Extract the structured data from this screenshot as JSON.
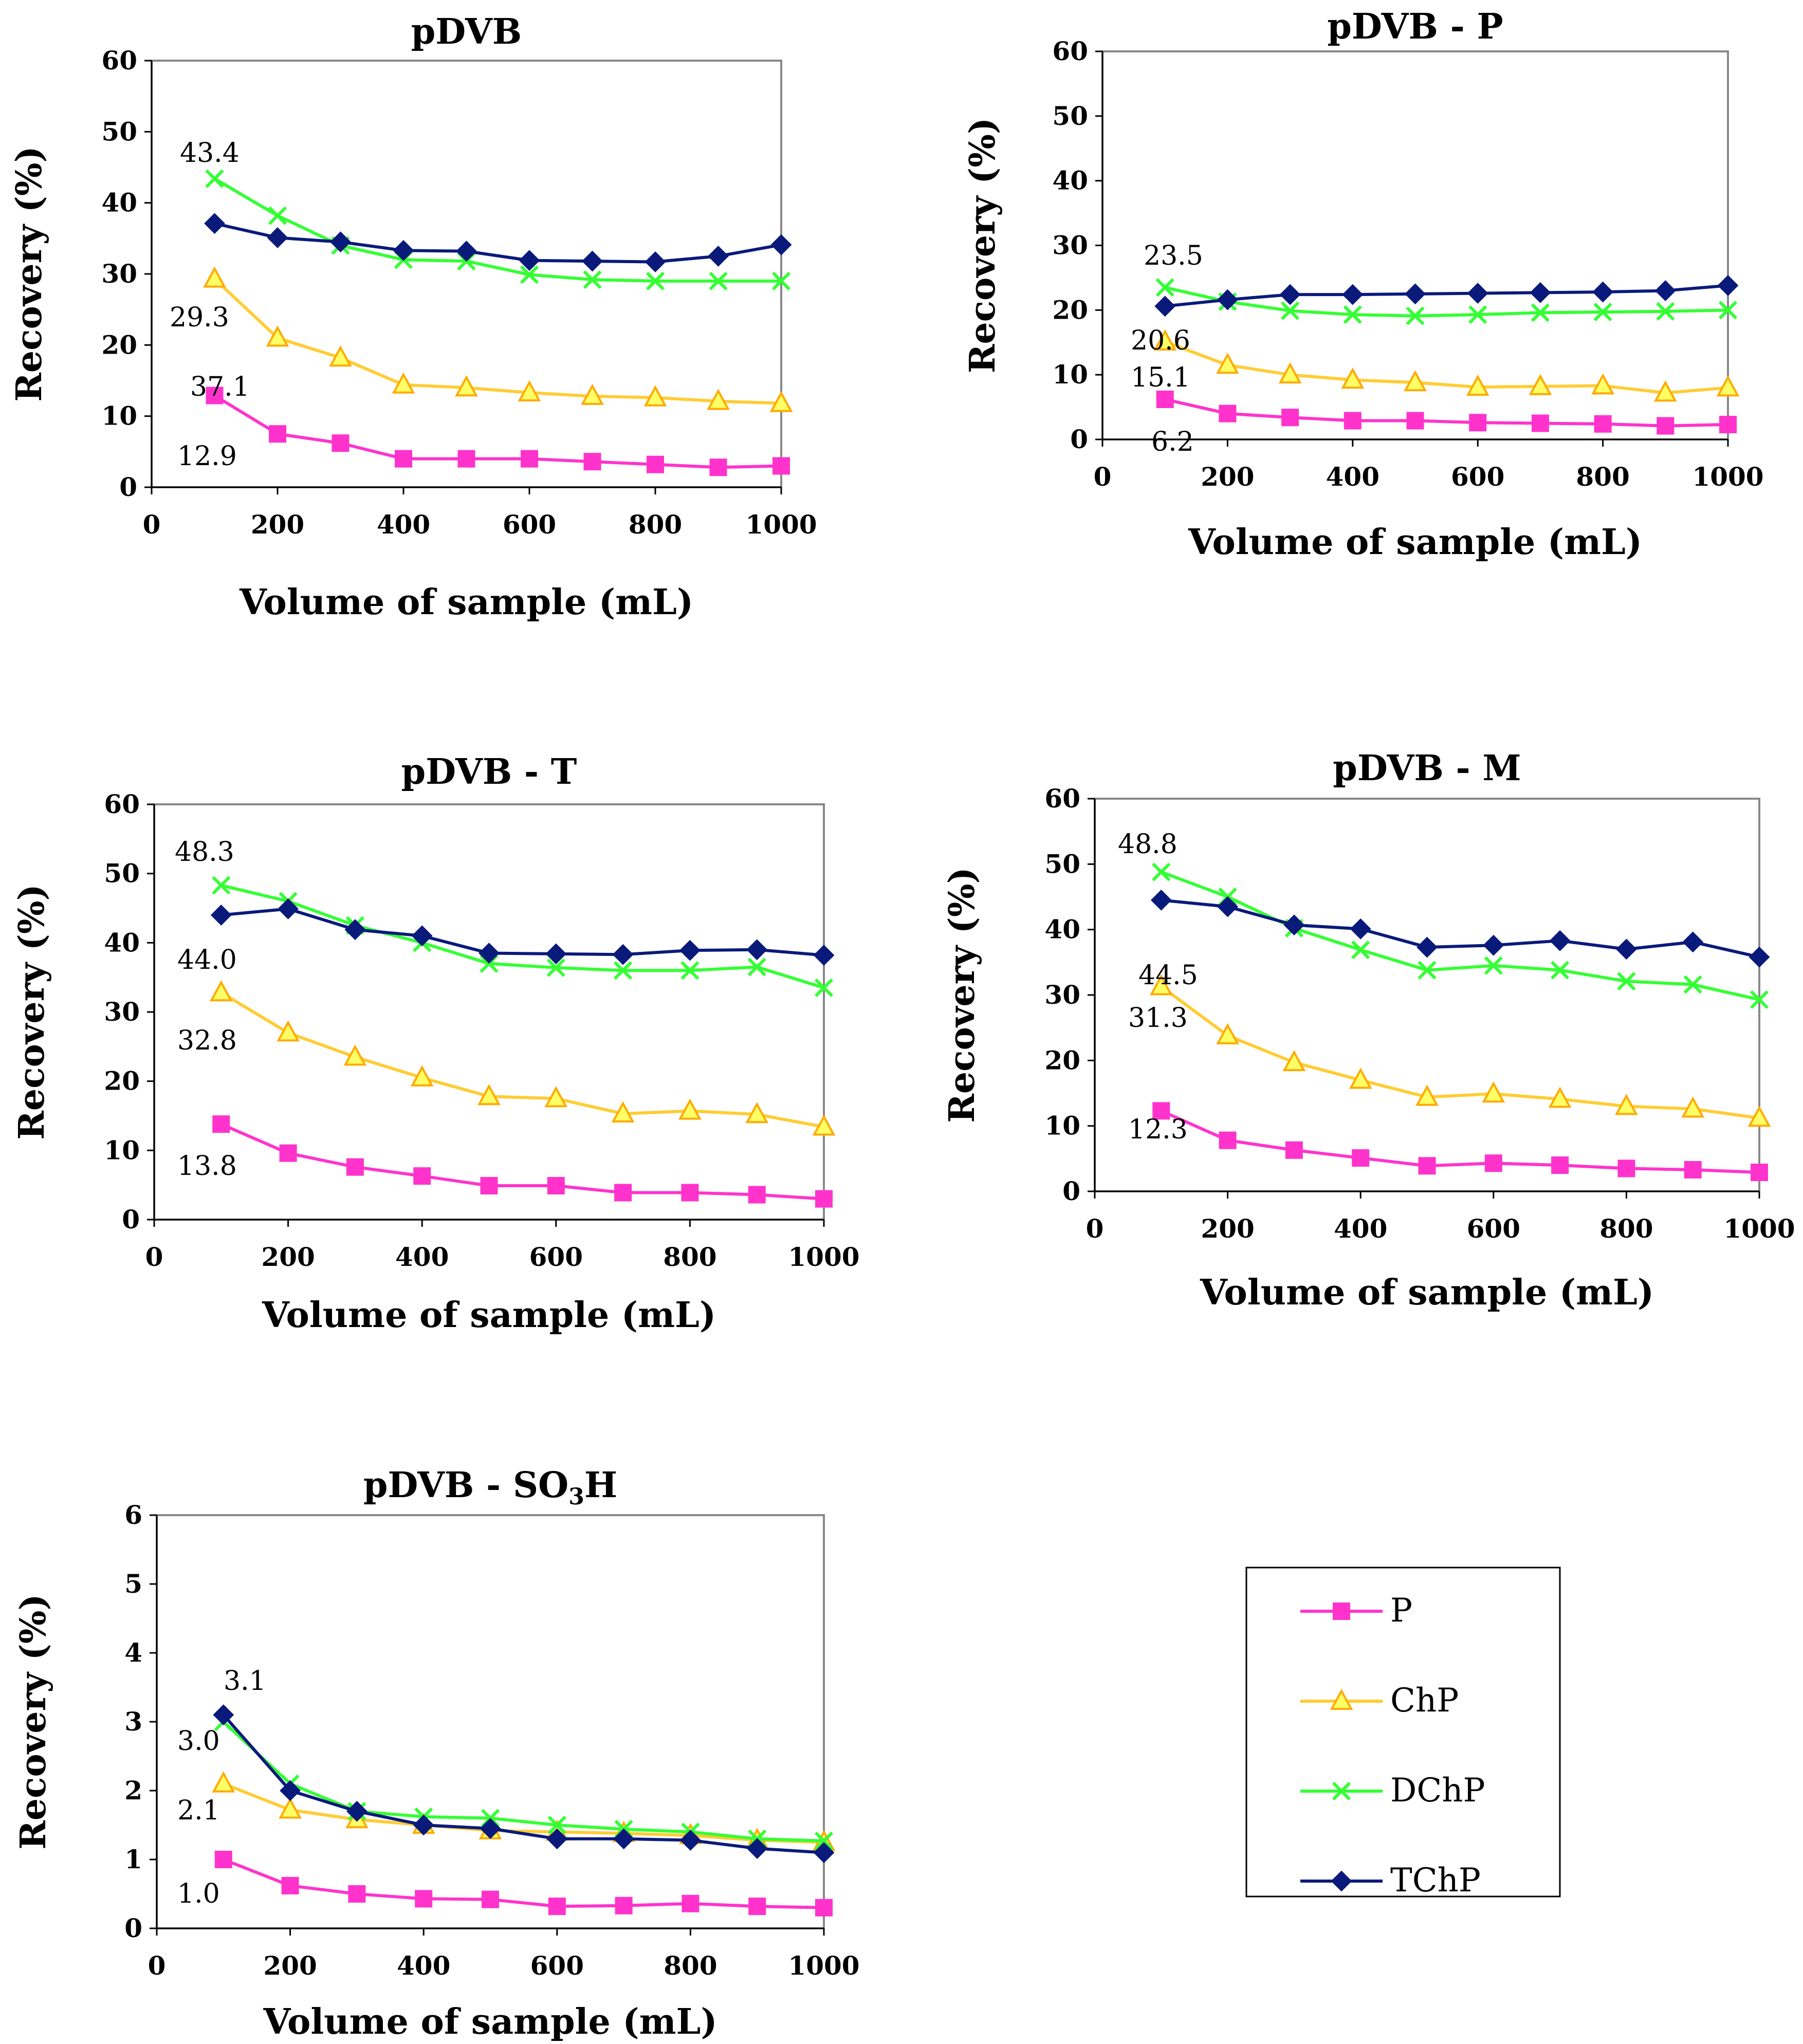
{
  "colors": {
    "P": "#ff33cc",
    "ChP": "#ffcc33",
    "DChP": "#33ff33",
    "TChP": "#0a1a7a",
    "triangle_fill": "#ffff66",
    "triangle_stroke": "#ffaa00",
    "plot_border": "#888888",
    "axis": "#000000"
  },
  "legend": {
    "entries": [
      {
        "name": "P",
        "marker": "square-icon"
      },
      {
        "name": "ChP",
        "marker": "triangle-icon"
      },
      {
        "name": "DChP",
        "marker": "cross-icon"
      },
      {
        "name": "TChP",
        "marker": "diamond-icon"
      }
    ]
  },
  "chart_data": [
    {
      "type": "line",
      "title": "pDVB",
      "xlabel": "Volume of sample (mL)",
      "ylabel": "Recovery (%)",
      "xlim": [
        0,
        1000
      ],
      "ylim": [
        0,
        60
      ],
      "xticks": [
        0,
        200,
        400,
        600,
        800,
        1000
      ],
      "yticks": [
        0,
        10,
        20,
        30,
        40,
        50,
        60
      ],
      "x": [
        100,
        200,
        300,
        400,
        500,
        600,
        700,
        800,
        900,
        1000
      ],
      "series": [
        {
          "name": "P",
          "values": [
            12.9,
            7.5,
            6.2,
            4.0,
            4.0,
            4.0,
            3.6,
            3.2,
            2.8,
            3.0
          ]
        },
        {
          "name": "ChP",
          "values": [
            29.3,
            21.0,
            18.2,
            14.4,
            14.0,
            13.3,
            12.8,
            12.6,
            12.1,
            11.8
          ]
        },
        {
          "name": "DChP",
          "values": [
            43.4,
            38.2,
            34.0,
            32.0,
            31.8,
            29.9,
            29.2,
            29.0,
            29.0,
            29.0
          ]
        },
        {
          "name": "TChP",
          "values": [
            37.1,
            35.1,
            34.5,
            33.3,
            33.2,
            31.9,
            31.8,
            31.7,
            32.5,
            34.1
          ]
        }
      ],
      "annotations": [
        {
          "text": "43.4",
          "series": "DChP",
          "x": 100,
          "y": 43.4
        },
        {
          "text": "37.1",
          "series": "TChP",
          "x": 100,
          "y": 37.1
        },
        {
          "text": "29.3",
          "series": "ChP",
          "x": 100,
          "y": 29.3
        },
        {
          "text": "12.9",
          "series": "P",
          "x": 100,
          "y": 12.9
        }
      ]
    },
    {
      "type": "line",
      "title": "pDVB - P",
      "xlabel": "Volume of sample (mL)",
      "ylabel": "Recovery (%)",
      "xlim": [
        0,
        1000
      ],
      "ylim": [
        0,
        60
      ],
      "xticks": [
        0,
        200,
        400,
        600,
        800,
        1000
      ],
      "yticks": [
        0,
        10,
        20,
        30,
        40,
        50,
        60
      ],
      "x": [
        100,
        200,
        300,
        400,
        500,
        600,
        700,
        800,
        900,
        1000
      ],
      "series": [
        {
          "name": "P",
          "values": [
            6.2,
            4.0,
            3.4,
            2.9,
            2.9,
            2.6,
            2.5,
            2.4,
            2.1,
            2.3
          ]
        },
        {
          "name": "ChP",
          "values": [
            15.1,
            11.5,
            10.0,
            9.2,
            8.8,
            8.1,
            8.2,
            8.3,
            7.2,
            8.0
          ]
        },
        {
          "name": "DChP",
          "values": [
            23.5,
            21.3,
            19.9,
            19.3,
            19.1,
            19.3,
            19.6,
            19.7,
            19.8,
            20.0
          ]
        },
        {
          "name": "TChP",
          "values": [
            20.6,
            21.6,
            22.4,
            22.4,
            22.5,
            22.6,
            22.7,
            22.8,
            23.0,
            23.8
          ]
        }
      ],
      "annotations": [
        {
          "text": "23.5",
          "series": "DChP",
          "x": 100,
          "y": 23.5
        },
        {
          "text": "20.6",
          "series": "TChP",
          "x": 100,
          "y": 20.6
        },
        {
          "text": "15.1",
          "series": "ChP",
          "x": 100,
          "y": 15.1
        },
        {
          "text": "6.2",
          "series": "P",
          "x": 100,
          "y": 6.2
        }
      ]
    },
    {
      "type": "line",
      "title": "pDVB - T",
      "xlabel": "Volume of sample (mL)",
      "ylabel": "Recovery (%)",
      "xlim": [
        0,
        1000
      ],
      "ylim": [
        0,
        60
      ],
      "xticks": [
        0,
        200,
        400,
        600,
        800,
        1000
      ],
      "yticks": [
        0,
        10,
        20,
        30,
        40,
        50,
        60
      ],
      "x": [
        100,
        200,
        300,
        400,
        500,
        600,
        700,
        800,
        900,
        1000
      ],
      "series": [
        {
          "name": "P",
          "values": [
            13.8,
            9.6,
            7.6,
            6.3,
            4.9,
            4.9,
            3.9,
            3.9,
            3.6,
            3.0
          ]
        },
        {
          "name": "ChP",
          "values": [
            32.8,
            27.0,
            23.5,
            20.5,
            17.8,
            17.5,
            15.3,
            15.7,
            15.2,
            13.4
          ]
        },
        {
          "name": "DChP",
          "values": [
            48.3,
            46.0,
            42.5,
            40.0,
            37.0,
            36.4,
            36.0,
            36.0,
            36.5,
            33.5
          ]
        },
        {
          "name": "TChP",
          "values": [
            44.0,
            44.9,
            41.9,
            41.0,
            38.5,
            38.4,
            38.3,
            38.9,
            39.0,
            38.2
          ]
        }
      ],
      "annotations": [
        {
          "text": "48.3",
          "series": "DChP",
          "x": 100,
          "y": 48.3
        },
        {
          "text": "44.0",
          "series": "TChP",
          "x": 100,
          "y": 44.0
        },
        {
          "text": "32.8",
          "series": "ChP",
          "x": 100,
          "y": 32.8
        },
        {
          "text": "13.8",
          "series": "P",
          "x": 100,
          "y": 13.8
        }
      ]
    },
    {
      "type": "line",
      "title": "pDVB - M",
      "xlabel": "Volume of sample (mL)",
      "ylabel": "Recovery (%)",
      "xlim": [
        0,
        1000
      ],
      "ylim": [
        0,
        60
      ],
      "xticks": [
        0,
        200,
        400,
        600,
        800,
        1000
      ],
      "yticks": [
        0,
        10,
        20,
        30,
        40,
        50,
        60
      ],
      "x": [
        100,
        200,
        300,
        400,
        500,
        600,
        700,
        800,
        900,
        1000
      ],
      "series": [
        {
          "name": "P",
          "values": [
            12.3,
            7.8,
            6.3,
            5.1,
            3.9,
            4.3,
            4.0,
            3.5,
            3.3,
            2.9
          ]
        },
        {
          "name": "ChP",
          "values": [
            31.3,
            23.8,
            19.7,
            17.0,
            14.4,
            14.9,
            14.1,
            13.0,
            12.6,
            11.2
          ]
        },
        {
          "name": "DChP",
          "values": [
            48.8,
            45.0,
            40.2,
            36.9,
            33.8,
            34.5,
            33.8,
            32.1,
            31.6,
            29.3
          ]
        },
        {
          "name": "TChP",
          "values": [
            44.5,
            43.5,
            40.7,
            40.1,
            37.3,
            37.6,
            38.3,
            37.0,
            38.1,
            35.8
          ]
        }
      ],
      "annotations": [
        {
          "text": "48.8",
          "series": "DChP",
          "x": 100,
          "y": 48.8
        },
        {
          "text": "44.5",
          "series": "TChP",
          "x": 100,
          "y": 44.5
        },
        {
          "text": "31.3",
          "series": "ChP",
          "x": 100,
          "y": 31.3
        },
        {
          "text": "12.3",
          "series": "P",
          "x": 100,
          "y": 12.3
        }
      ]
    },
    {
      "type": "line",
      "title": "pDVB - SO",
      "title_subscript": "3",
      "title_suffix": "H",
      "xlabel": "Volume of sample (mL)",
      "ylabel": "Recovery (%)",
      "xlim": [
        0,
        1000
      ],
      "ylim": [
        0,
        6
      ],
      "xticks": [
        0,
        200,
        400,
        600,
        800,
        1000
      ],
      "yticks": [
        0,
        1,
        2,
        3,
        4,
        5,
        6
      ],
      "x": [
        100,
        200,
        300,
        400,
        500,
        600,
        700,
        800,
        900,
        1000
      ],
      "series": [
        {
          "name": "P",
          "values": [
            1.0,
            0.62,
            0.5,
            0.43,
            0.42,
            0.32,
            0.33,
            0.36,
            0.32,
            0.3
          ]
        },
        {
          "name": "ChP",
          "values": [
            2.1,
            1.72,
            1.58,
            1.5,
            1.42,
            1.4,
            1.38,
            1.35,
            1.28,
            1.25
          ]
        },
        {
          "name": "DChP",
          "values": [
            3.0,
            2.1,
            1.7,
            1.62,
            1.6,
            1.5,
            1.44,
            1.4,
            1.3,
            1.27
          ]
        },
        {
          "name": "TChP",
          "values": [
            3.1,
            2.0,
            1.7,
            1.5,
            1.45,
            1.3,
            1.3,
            1.28,
            1.16,
            1.1
          ]
        }
      ],
      "annotations": [
        {
          "text": "3.1",
          "series": "TChP",
          "x": 100,
          "y": 3.1
        },
        {
          "text": "3.0",
          "series": "DChP",
          "x": 100,
          "y": 3.0
        },
        {
          "text": "2.1",
          "series": "ChP",
          "x": 100,
          "y": 2.1
        },
        {
          "text": "1.0",
          "series": "P",
          "x": 100,
          "y": 1.0
        }
      ]
    }
  ]
}
